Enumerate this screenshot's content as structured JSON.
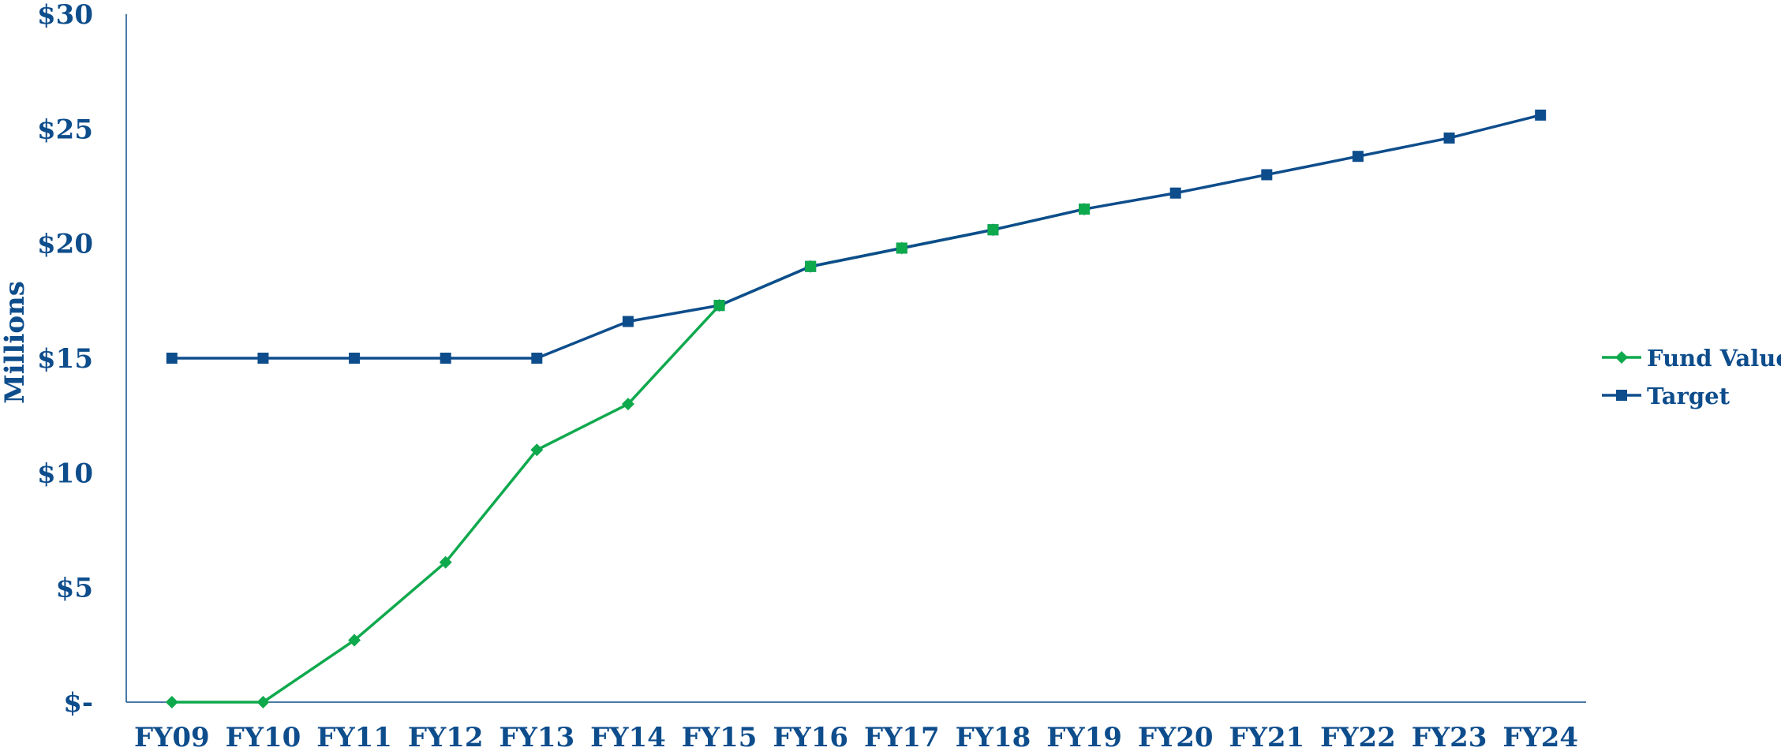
{
  "chart_data": {
    "type": "line",
    "title": "",
    "xlabel": "",
    "ylabel": "Millions",
    "categories": [
      "FY09",
      "FY10",
      "FY11",
      "FY12",
      "FY13",
      "FY14",
      "FY15",
      "FY16",
      "FY17",
      "FY18",
      "FY19",
      "FY20",
      "FY21",
      "FY22",
      "FY23",
      "FY24"
    ],
    "ylim": [
      0,
      30
    ],
    "ytick_values": [
      0,
      5,
      10,
      15,
      20,
      25,
      30
    ],
    "ytick_labels": [
      "$-",
      "$5",
      "$10",
      "$15",
      "$20",
      "$25",
      "$30"
    ],
    "grid": false,
    "legend_position": "right",
    "series": [
      {
        "name": "Fund Value",
        "color": "#0fa94d",
        "marker": "diamond",
        "values": [
          0,
          0,
          2.7,
          6.1,
          11.0,
          13.0,
          17.3,
          19.0,
          19.8,
          20.6,
          21.5,
          null,
          null,
          null,
          null,
          null
        ]
      },
      {
        "name": "Target",
        "color": "#0e4d8c",
        "marker": "square",
        "values": [
          15,
          15,
          15,
          15,
          15,
          16.6,
          17.3,
          19.0,
          19.8,
          20.6,
          21.5,
          22.2,
          23.0,
          23.8,
          24.6,
          25.6
        ]
      }
    ],
    "axis_color": "#0e4d8c",
    "label_color": "#0e4d8c"
  }
}
